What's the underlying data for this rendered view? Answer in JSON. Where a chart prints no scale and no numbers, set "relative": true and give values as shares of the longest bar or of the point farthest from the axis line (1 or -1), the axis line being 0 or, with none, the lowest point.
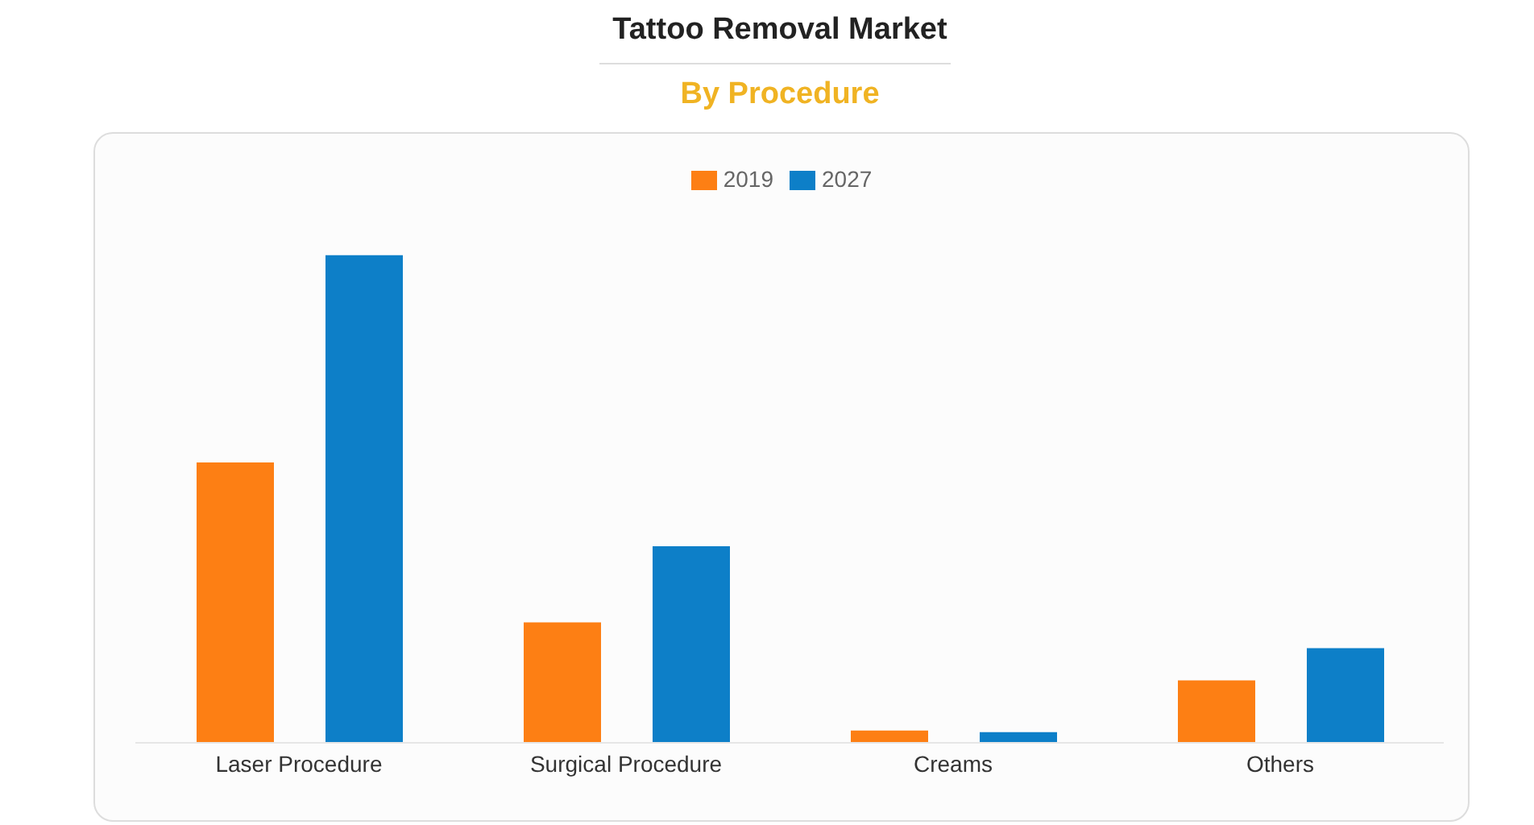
{
  "chart_data": {
    "type": "bar",
    "title": "Tattoo Removal Market",
    "subtitle": "By Procedure",
    "relative": true,
    "categories": [
      "Laser Procedure",
      "Surgical Procedure",
      "Creams",
      "Others"
    ],
    "series": [
      {
        "name": "2019",
        "color": "#fd7f14",
        "values": [
          0.575,
          0.247,
          0.025,
          0.128
        ]
      },
      {
        "name": "2027",
        "color": "#0d7fc8",
        "values": [
          1,
          0.403,
          0.022,
          0.194
        ]
      }
    ],
    "legend": "top",
    "grid": false
  }
}
